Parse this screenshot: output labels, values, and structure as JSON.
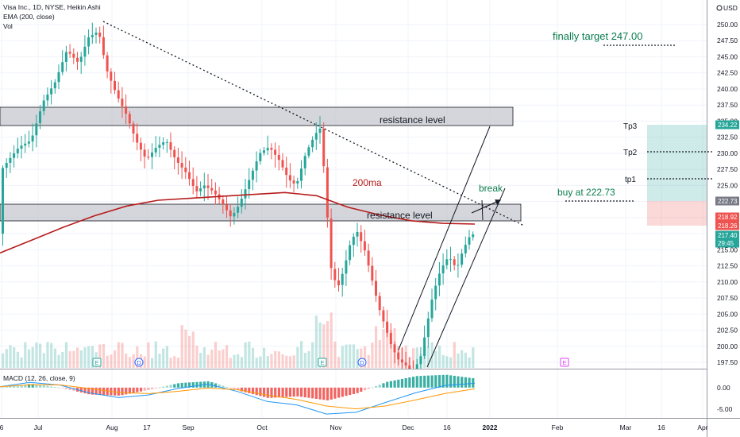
{
  "legend": {
    "symbol": "Visa Inc., 1D, NYSE, Heikin Ashi",
    "ema": "EMA (200, close)",
    "vol": "Vol",
    "macd": "MACD (12, 26, close, 9)"
  },
  "currency": "USD",
  "annotations": {
    "final_target": "finally target  247.00",
    "resistance_upper": "resistance level",
    "resistance_lower": "resistance level",
    "ma_label": "200ma",
    "break_label": "break",
    "buy_label": "buy at 222.73",
    "tp3": "Tp3",
    "tp2": "Tp2",
    "tp1": "tp1"
  },
  "price_tags": [
    {
      "value": "234.22",
      "color": "#26a69a"
    },
    {
      "value": "222.73",
      "color": "#787b86"
    },
    {
      "value": "218.92",
      "color": "#ef5350"
    },
    {
      "value": "218.26",
      "color": "#ef5350"
    },
    {
      "value": "217.40",
      "color": "#26a69a"
    },
    {
      "value": "29:45",
      "color": "#26a69a"
    }
  ],
  "event_markers": [
    {
      "label": "E",
      "color": "#26a69a"
    },
    {
      "label": "D",
      "color": "#2962ff"
    },
    {
      "label": "E",
      "color": "#26a69a"
    },
    {
      "label": "D",
      "color": "#2962ff"
    },
    {
      "label": "E",
      "color": "#e040fb"
    }
  ],
  "colors": {
    "up": "#26a69a",
    "down": "#ef5350",
    "ema": "#b71c1c",
    "macd": "#2196f3",
    "signal": "#ff9800"
  },
  "chart_data": {
    "type": "candlestick",
    "title": "Visa Inc., 1D, NYSE, Heikin Ashi",
    "x_tick_labels": [
      "6",
      "Jul",
      "Aug",
      "17",
      "Sep",
      "Oct",
      "Nov",
      "Dec",
      "16",
      "2022",
      "Feb",
      "Mar",
      "16",
      "Apr"
    ],
    "y_ticks": [
      "250.00",
      "247.50",
      "245.00",
      "242.50",
      "240.00",
      "237.50",
      "235.00",
      "232.50",
      "230.00",
      "227.50",
      "225.00",
      "222.50",
      "220.00",
      "217.50",
      "215.00",
      "212.50",
      "210.00",
      "207.50",
      "205.00",
      "202.50",
      "200.00",
      "197.50"
    ],
    "ylim": [
      196.5,
      251.5
    ],
    "macd_ticks": [
      "0.00",
      "-5.00"
    ],
    "macd_ylim": [
      -7,
      4
    ],
    "series": [
      {
        "name": "EMA (200, close)",
        "values": [
          214.5,
          216.5,
          218.5,
          220.3,
          221.8,
          222.7,
          223.0,
          223.3,
          223.6,
          223.9,
          223.4,
          221.6,
          220.4,
          219.5,
          219.1,
          219.0
        ]
      },
      {
        "name": "MACD (12, 26, close, 9)",
        "values": [
          0.2,
          1.2,
          0.6,
          -1.2,
          -2.3,
          -1.7,
          -0.2,
          0.8,
          -0.9,
          -3.2,
          -4.0,
          -6.1,
          -5.7,
          -3.4,
          -1.2,
          0.5,
          1.0
        ]
      }
    ],
    "levels": [
      {
        "label": "finally target  247.00",
        "value": 247.0
      },
      {
        "label": "Tp3",
        "value": 234.22
      },
      {
        "label": "Tp2",
        "value": 230.2
      },
      {
        "label": "tp1",
        "value": 226.1
      },
      {
        "label": "buy at 222.73",
        "value": 222.73
      }
    ],
    "zones": [
      {
        "label": "resistance level",
        "from": 234.6,
        "to": 237.2
      },
      {
        "label": "resistance level",
        "from": 219.4,
        "to": 221.8
      }
    ]
  }
}
